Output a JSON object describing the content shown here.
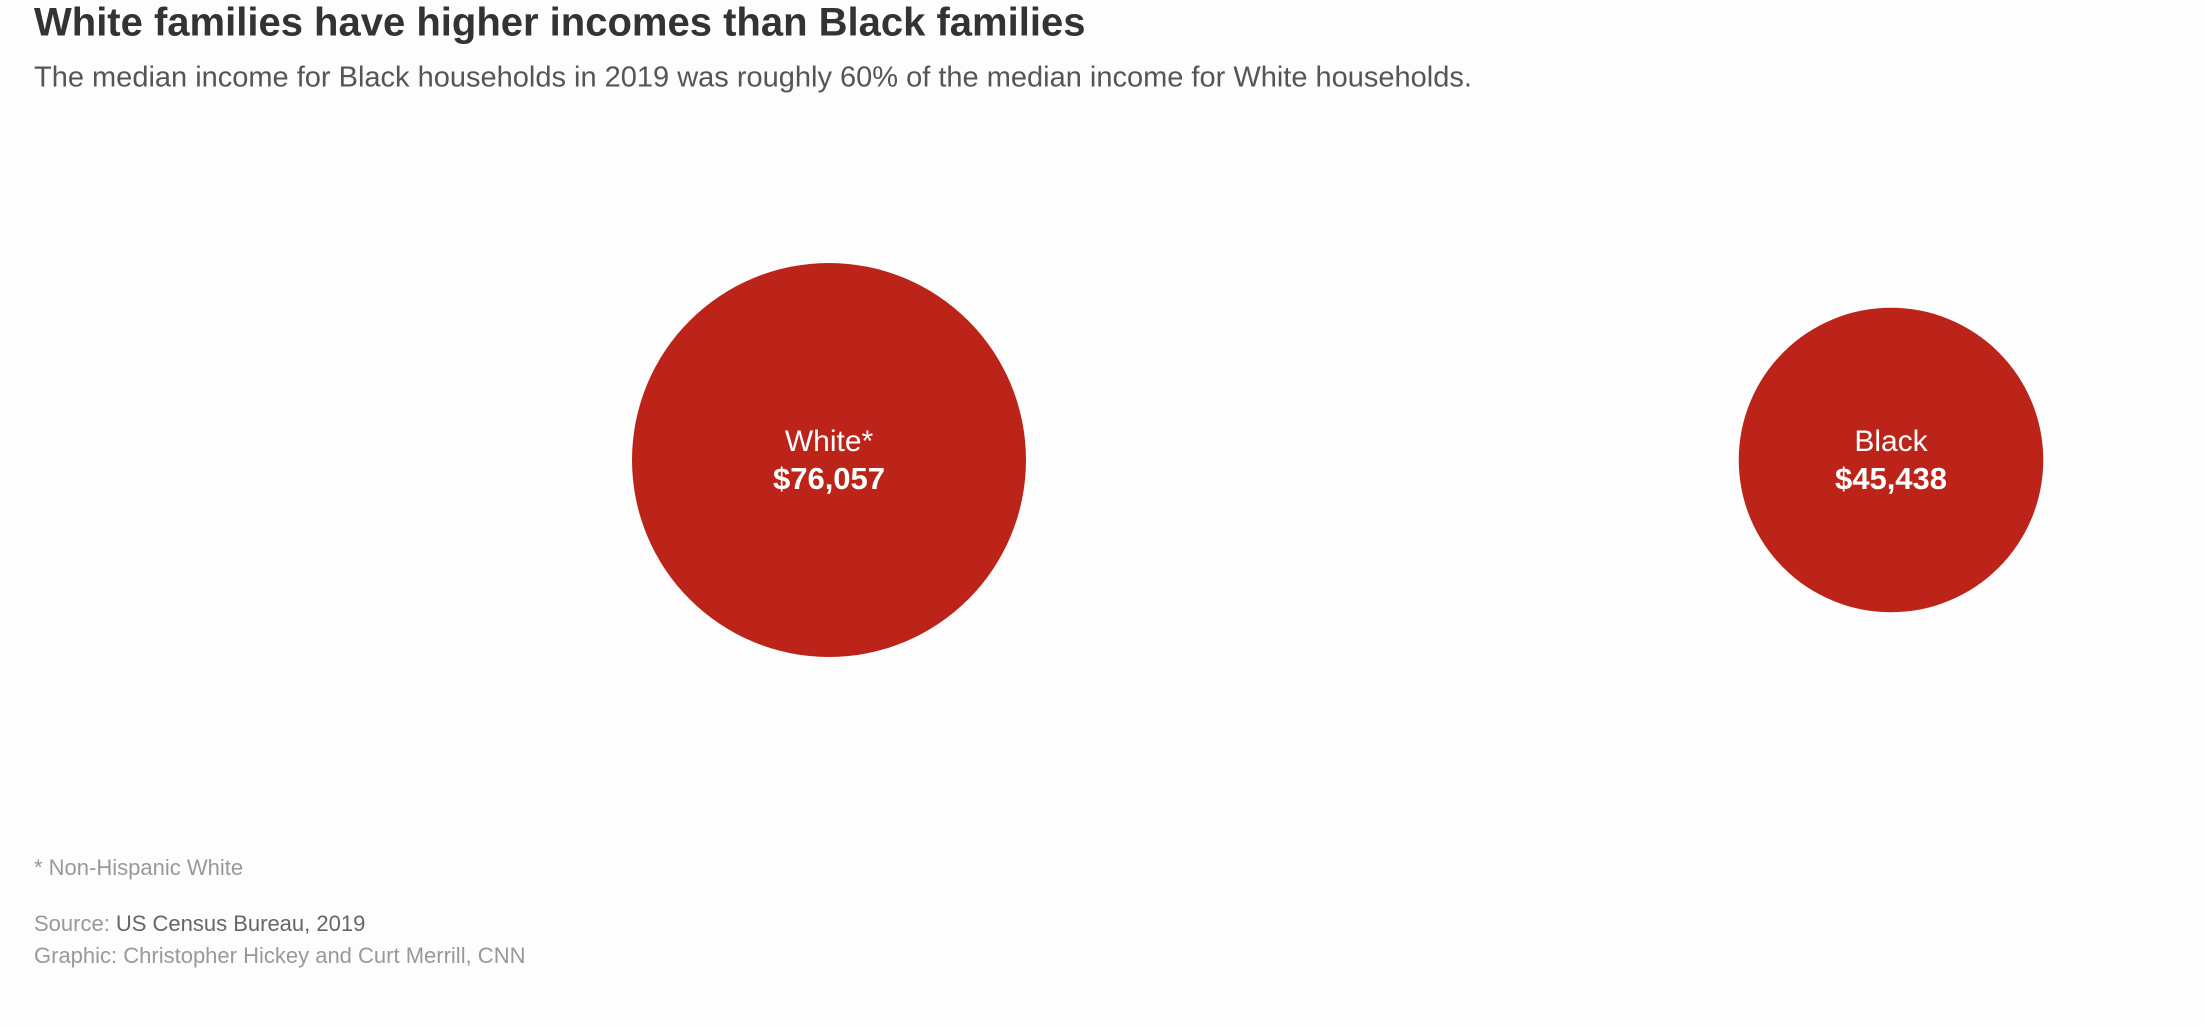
{
  "chart_data": {
    "type": "bubble",
    "title": "White families have higher incomes than Black families",
    "subtitle": "The median income for Black households in 2019 was roughly 60% of the median income for White households.",
    "categories": [
      "White*",
      "Black"
    ],
    "values": [
      76057,
      45438
    ],
    "value_labels": [
      "$76,057",
      "$45,438"
    ],
    "color": "#bc2419",
    "footnote": "* Non-Hispanic White",
    "source_label": "Source:",
    "source": "US Census Bureau, 2019",
    "credit": "Graphic: Christopher Hickey and Curt Merrill, CNN"
  }
}
